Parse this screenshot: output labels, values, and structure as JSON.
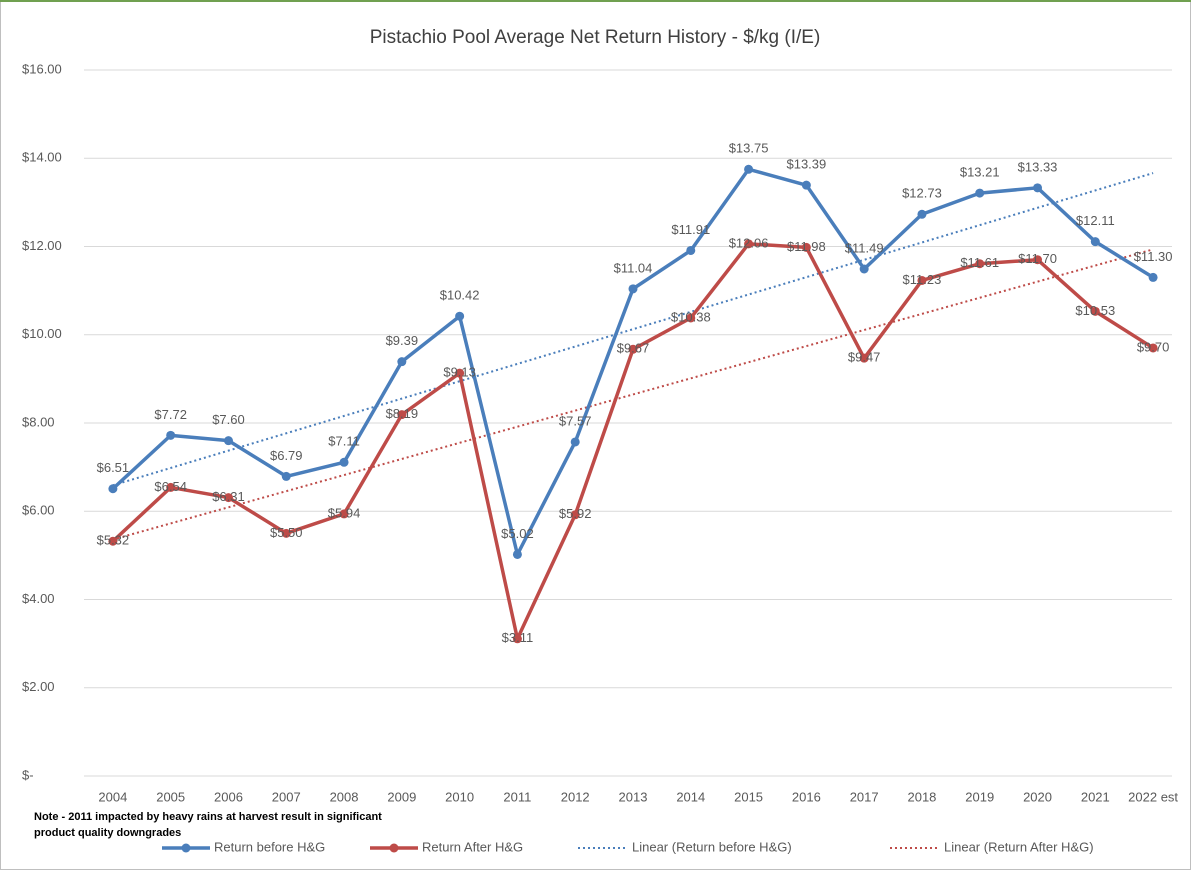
{
  "chart_data": {
    "type": "line",
    "title": "Pistachio Pool Average Net Return History - $/kg (I/E)",
    "note": [
      "Note - 2011 impacted by heavy rains at harvest result in significant",
      "product quality downgrades"
    ],
    "categories": [
      "2004",
      "2005",
      "2006",
      "2007",
      "2008",
      "2009",
      "2010",
      "2011",
      "2012",
      "2013",
      "2014",
      "2015",
      "2016",
      "2017",
      "2018",
      "2019",
      "2020",
      "2021",
      "2022 est"
    ],
    "series": [
      {
        "name": "Return before H&G",
        "color": "#4a7ebb",
        "values": [
          6.51,
          7.72,
          7.6,
          6.79,
          7.11,
          9.39,
          10.42,
          5.02,
          7.57,
          11.04,
          11.91,
          13.75,
          13.39,
          11.49,
          12.73,
          13.21,
          13.33,
          12.11,
          11.3
        ],
        "value_labels": [
          "$6.51",
          "$7.72",
          "$7.60",
          "$6.79",
          "$7.11",
          "$9.39",
          "$10.42",
          "$5.02",
          "$7.57",
          "$11.04",
          "$11.91",
          "$13.75",
          "$13.39",
          "$11.49",
          "$12.73",
          "$13.21",
          "$13.33",
          "$12.11",
          "$11.30"
        ],
        "trendline": {
          "name": "Linear (Return before H&G)",
          "color": "#4a7ebb"
        }
      },
      {
        "name": "Return After H&G",
        "color": "#be4b48",
        "values": [
          5.32,
          6.54,
          6.31,
          5.5,
          5.94,
          8.19,
          9.13,
          3.11,
          5.92,
          9.67,
          10.38,
          12.06,
          11.98,
          9.47,
          11.23,
          11.61,
          11.7,
          10.53,
          9.7
        ],
        "value_labels": [
          "$5.32",
          "$6.54",
          "$6.31",
          "$5.50",
          "$5.94",
          "$8.19",
          "$9.13",
          "$3.11",
          "$5.92",
          "$9.67",
          "$10.38",
          "$12.06",
          "$11.98",
          "$9.47",
          "$11.23",
          "$11.61",
          "$11.70",
          "$10.53",
          "$9.70"
        ],
        "trendline": {
          "name": "Linear (Return After H&G)",
          "color": "#be4b48"
        }
      }
    ],
    "ylim": [
      0,
      16
    ],
    "yticks": [
      {
        "value": 0,
        "label": "$-"
      },
      {
        "value": 2,
        "label": "$2.00"
      },
      {
        "value": 4,
        "label": "$4.00"
      },
      {
        "value": 6,
        "label": "$6.00"
      },
      {
        "value": 8,
        "label": "$8.00"
      },
      {
        "value": 10,
        "label": "$10.00"
      },
      {
        "value": 12,
        "label": "$12.00"
      },
      {
        "value": 14,
        "label": "$14.00"
      },
      {
        "value": 16,
        "label": "$16.00"
      }
    ],
    "grid": true,
    "legend": "bottom"
  }
}
